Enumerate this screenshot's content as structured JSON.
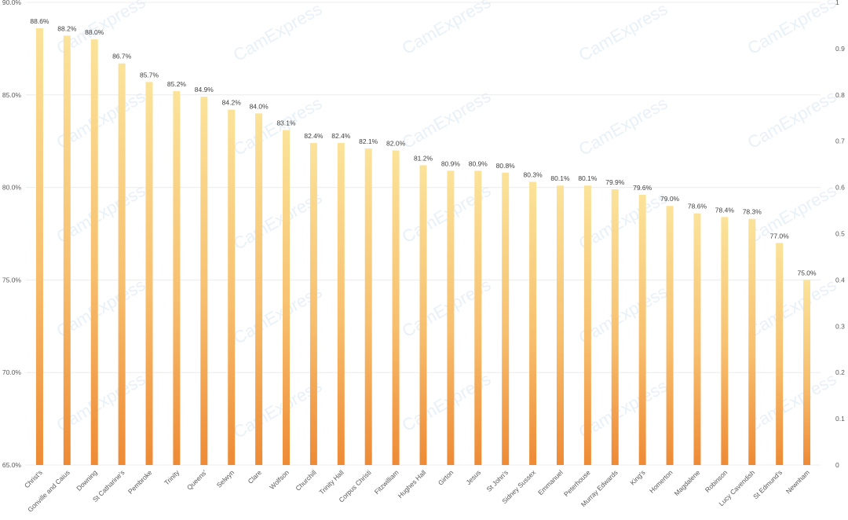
{
  "chart_data": {
    "type": "bar",
    "categories": [
      "Christ's",
      "Gonville and Caius",
      "Downing",
      "St Catharine's",
      "Pembroke",
      "Trinity",
      "Queens'",
      "Selwyn",
      "Clare",
      "Wolfson",
      "Churchill",
      "Trinity Hall",
      "Corpus Christi",
      "Fitzwilliam",
      "Hughes Hall",
      "Girton",
      "Jesus",
      "St John's",
      "Sidney Sussex",
      "Emmanuel",
      "Peterhouse",
      "Murray Edwards",
      "King's",
      "Homerton",
      "Magdalene",
      "Robinson",
      "Lucy Cavendish",
      "St Edmund's",
      "Newnham"
    ],
    "values": [
      88.6,
      88.2,
      88.0,
      86.7,
      85.7,
      85.2,
      84.9,
      84.2,
      84.0,
      83.1,
      82.4,
      82.4,
      82.1,
      82.0,
      81.2,
      80.9,
      80.9,
      80.8,
      80.3,
      80.1,
      80.1,
      79.9,
      79.6,
      79.0,
      78.6,
      78.4,
      78.3,
      77.0,
      75.0
    ],
    "value_labels": [
      "88.6%",
      "88.2%",
      "88.0%",
      "86.7%",
      "85.7%",
      "85.2%",
      "84.9%",
      "84.2%",
      "84.0%",
      "83.1%",
      "82.4%",
      "82.4%",
      "82.1%",
      "82.0%",
      "81.2%",
      "80.9%",
      "80.9%",
      "80.8%",
      "80.3%",
      "80.1%",
      "80.1%",
      "79.9%",
      "79.6%",
      "79.0%",
      "78.6%",
      "78.4%",
      "78.3%",
      "77.0%",
      "75.0%"
    ],
    "ylim": [
      65,
      90
    ],
    "y_ticks": [
      65,
      70,
      75,
      80,
      85,
      90
    ],
    "y_tick_labels": [
      "65.0%",
      "70.0%",
      "75.0%",
      "80.0%",
      "85.0%",
      "90.0%"
    ],
    "y2lim": [
      0,
      1
    ],
    "y2_ticks": [
      0,
      0.1,
      0.2,
      0.3,
      0.4,
      0.5,
      0.6,
      0.7,
      0.8,
      0.9,
      1
    ],
    "y2_tick_labels": [
      "0",
      "0.1",
      "0.2",
      "0.3",
      "0.4",
      "0.5",
      "0.6",
      "0.7",
      "0.8",
      "0.9",
      "1"
    ],
    "grid": true,
    "watermark_text": "CamExpress",
    "colors": {
      "bar_top": "#fbe39a",
      "bar_bottom": "#ee8a35",
      "grid": "#ececec",
      "axis_text": "#595959",
      "watermark": "#d6e6f3"
    }
  }
}
